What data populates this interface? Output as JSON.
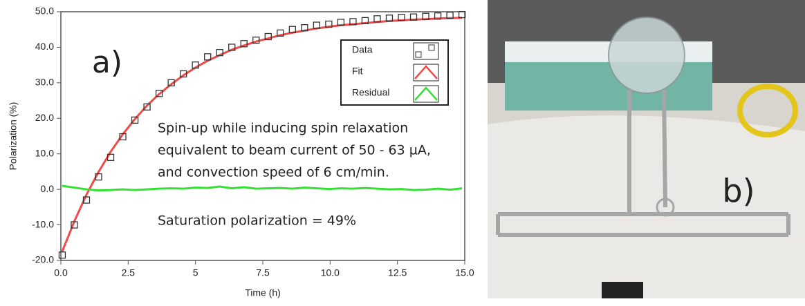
{
  "chart_data": {
    "type": "scatter-line",
    "panel_label": "a)",
    "xlabel": "Time (h)",
    "ylabel": "Polarization (%)",
    "annotations": [
      "Spin-up while inducing spin relaxation",
      "equivalent to beam current of 50 - 63 µA,",
      "and convection speed of 6 cm/min.",
      "Saturation polarization = 49%"
    ],
    "xlim": [
      0,
      15
    ],
    "ylim": [
      -20,
      50
    ],
    "xticks": [
      {
        "value": 0,
        "label": "0.0"
      },
      2.5,
      5,
      7.5,
      {
        "value": 10,
        "label": "10.0"
      },
      12.5,
      {
        "value": 15,
        "label": "15.0"
      }
    ],
    "yticks": [
      {
        "value": -20,
        "label": "-20.0"
      },
      {
        "value": -10,
        "label": "-10.0"
      },
      {
        "value": 0,
        "label": "0.0"
      },
      {
        "value": 10,
        "label": "10.0"
      },
      {
        "value": 20,
        "label": "20.0"
      },
      {
        "value": 30,
        "label": "30.0"
      },
      {
        "value": 40,
        "label": "40.0"
      },
      {
        "value": 50,
        "label": "50.0"
      }
    ],
    "x": [
      0.05,
      0.5,
      0.95,
      1.4,
      1.85,
      2.3,
      2.75,
      3.2,
      3.65,
      4.1,
      4.55,
      5.0,
      5.45,
      5.9,
      6.35,
      6.8,
      7.25,
      7.7,
      8.15,
      8.6,
      9.05,
      9.5,
      9.95,
      10.4,
      10.85,
      11.3,
      11.75,
      12.2,
      12.65,
      13.1,
      13.55,
      14.0,
      14.45,
      14.9
    ],
    "series": [
      {
        "name": "Data",
        "marker": "square",
        "color": "#333333",
        "values": [
          -18.5,
          -10,
          -3,
          3.5,
          9,
          14.8,
          19.5,
          23.2,
          27,
          30,
          32.5,
          35,
          37.3,
          38.5,
          40,
          41,
          42,
          43,
          44,
          45,
          45.5,
          46.2,
          46.5,
          47,
          47.2,
          47.5,
          48,
          48.2,
          48.4,
          48.5,
          48.7,
          48.8,
          49,
          49.2
        ]
      },
      {
        "name": "Fit",
        "marker": "line",
        "color": "#f04a4a",
        "values": [
          -17.5,
          -9,
          -1.5,
          4.9,
          10.6,
          15.5,
          19.8,
          23.6,
          26.8,
          29.6,
          32.1,
          34.3,
          36.2,
          37.8,
          39.3,
          40.5,
          41.6,
          42.5,
          43.4,
          44.1,
          44.7,
          45.3,
          45.8,
          46.2,
          46.5,
          46.8,
          47.1,
          47.4,
          47.6,
          47.8,
          47.9,
          48.1,
          48.2,
          48.3
        ]
      },
      {
        "name": "Residual",
        "marker": "line",
        "color": "#33e033",
        "values": [
          1,
          0.5,
          0,
          -0.3,
          -0.2,
          0,
          -0.2,
          0,
          0.2,
          0.3,
          0.2,
          0.5,
          0.4,
          0.8,
          0.3,
          0.6,
          0.2,
          0.3,
          0.4,
          0.2,
          0.5,
          0.3,
          0.1,
          0.3,
          0.2,
          0.4,
          0.2,
          0,
          0.1,
          -0.2,
          -0.1,
          0.2,
          -0.1,
          0.3
        ]
      }
    ]
  },
  "panel_b_label": "b)"
}
